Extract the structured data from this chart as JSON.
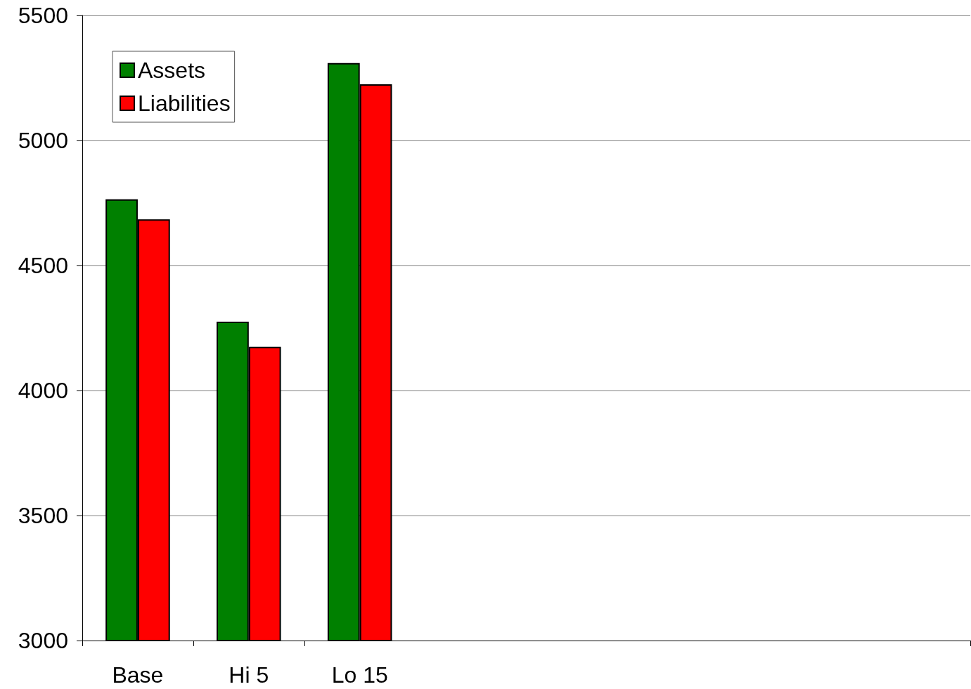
{
  "chart_data": {
    "type": "bar",
    "categories": [
      "Base",
      "Hi 5",
      "Lo 15",
      null,
      null,
      null,
      null,
      null
    ],
    "series": [
      {
        "name": "Assets",
        "color": "#008000",
        "values": [
          4765,
          4275,
          5310,
          null,
          null,
          null,
          null,
          null
        ]
      },
      {
        "name": "Liabilities",
        "color": "#ff0000",
        "values": [
          4685,
          4175,
          5225,
          null,
          null,
          null,
          null,
          null
        ]
      }
    ],
    "ylim": [
      3000,
      5500
    ],
    "yticks": [
      3000,
      3500,
      4000,
      4500,
      5000,
      5500
    ],
    "grid": "y",
    "legend": "top left"
  }
}
